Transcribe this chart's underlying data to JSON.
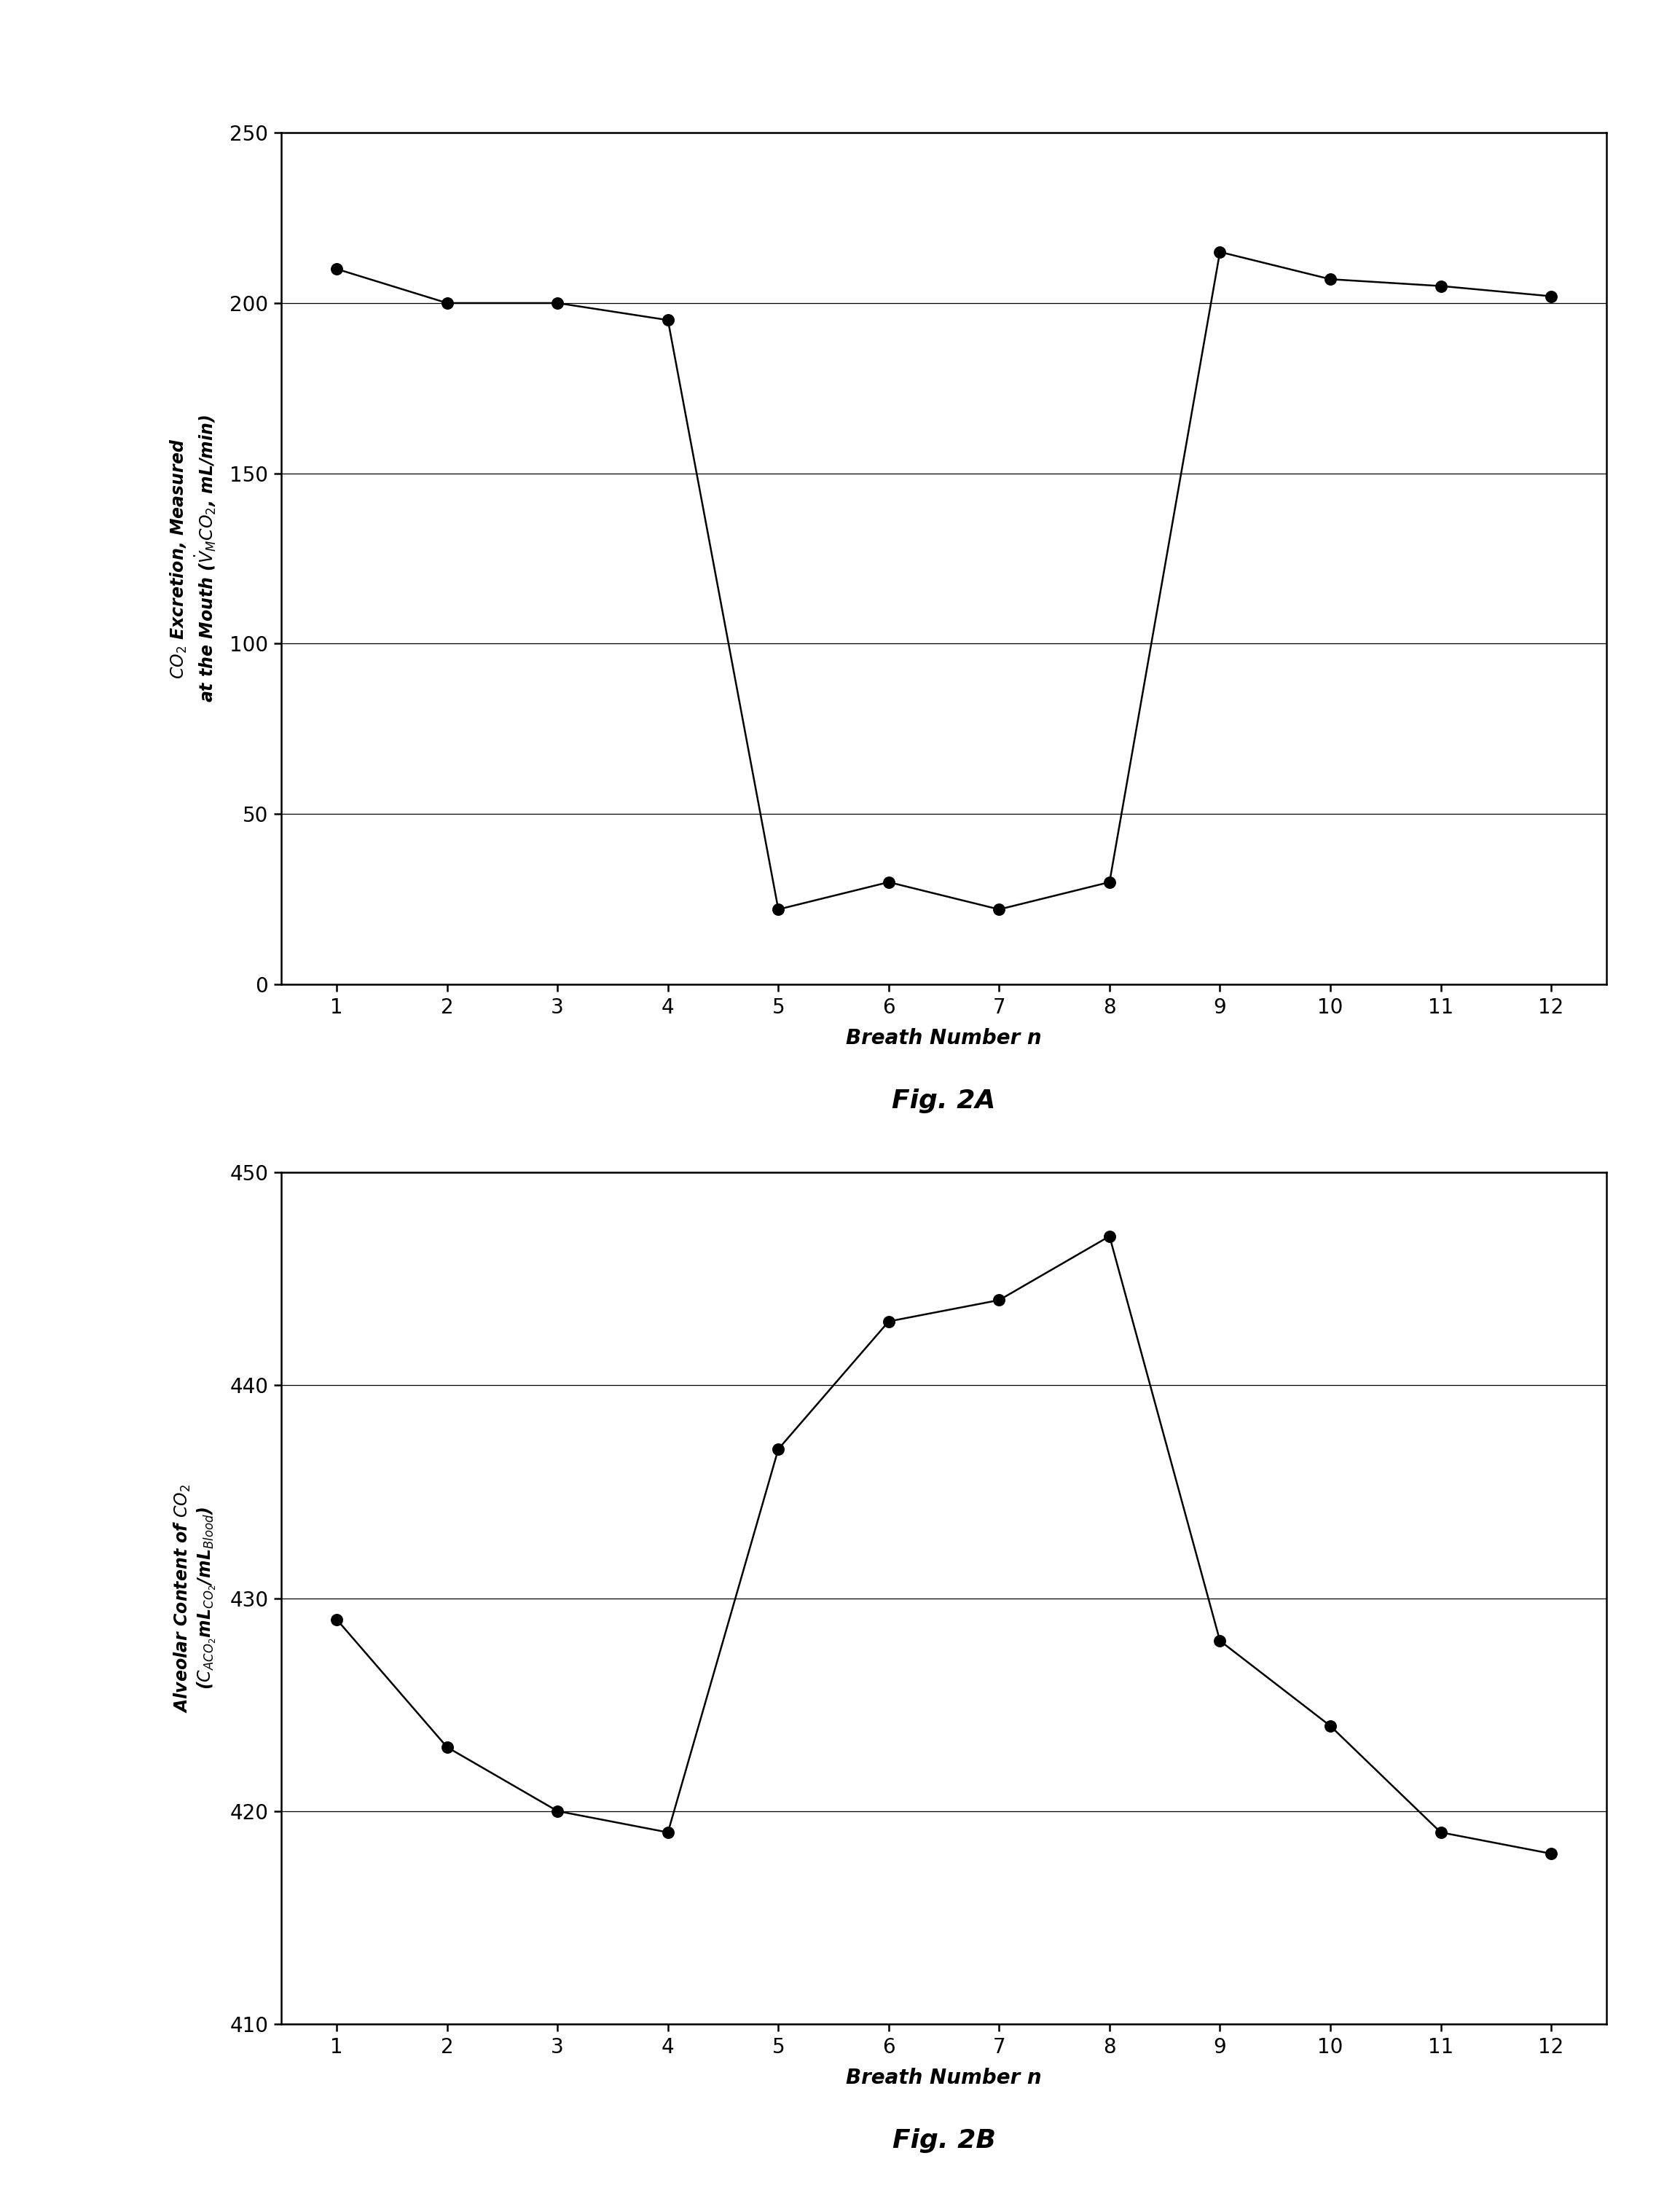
{
  "fig2a": {
    "x": [
      1,
      2,
      3,
      4,
      5,
      6,
      7,
      8,
      9,
      10,
      11,
      12
    ],
    "y": [
      210,
      200,
      200,
      195,
      22,
      30,
      22,
      30,
      215,
      207,
      205,
      202
    ],
    "xlabel": "Breath Number n",
    "title": "Fig. 2A",
    "ylim": [
      0,
      250
    ],
    "yticks": [
      0,
      50,
      100,
      150,
      200,
      250
    ],
    "xlim": [
      0.5,
      12.5
    ],
    "xticks": [
      1,
      2,
      3,
      4,
      5,
      6,
      7,
      8,
      9,
      10,
      11,
      12
    ]
  },
  "fig2b": {
    "x": [
      1,
      2,
      3,
      4,
      5,
      6,
      7,
      8,
      9,
      10,
      11,
      12
    ],
    "y": [
      429,
      423,
      420,
      419,
      437,
      443,
      444,
      447,
      428,
      424,
      419,
      418
    ],
    "xlabel": "Breath Number n",
    "title": "Fig. 2B",
    "ylim": [
      410,
      450
    ],
    "yticks": [
      410,
      420,
      430,
      440,
      450
    ],
    "xlim": [
      0.5,
      12.5
    ],
    "xticks": [
      1,
      2,
      3,
      4,
      5,
      6,
      7,
      8,
      9,
      10,
      11,
      12
    ]
  },
  "line_color": "#000000",
  "marker_color": "#000000",
  "bg_color": "#ffffff",
  "grid_color": "#000000",
  "font_size_tick": 20,
  "font_size_label": 20,
  "font_size_ylabel": 17,
  "font_size_title": 26,
  "marker_size": 11,
  "line_width": 1.8
}
